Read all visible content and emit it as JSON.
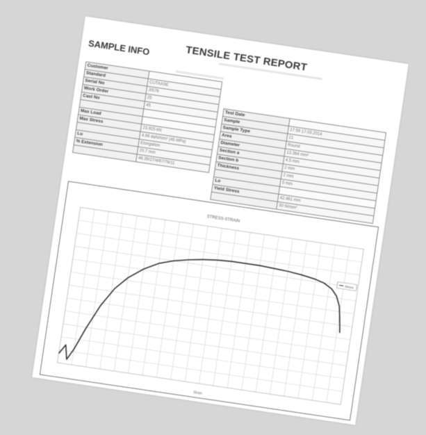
{
  "report": {
    "title": "TENSILE TEST REPORT",
    "section": "SAMPLE INFO"
  },
  "left_table": [
    {
      "label": "Customer",
      "value": ""
    },
    {
      "label": "Standard",
      "value": "CUTAASE"
    },
    {
      "label": "Serial No",
      "value": "JIS76"
    },
    {
      "label": "Work Order",
      "value": "25"
    },
    {
      "label": "Cast No",
      "value": "45"
    },
    {
      "label": "",
      "value": ""
    },
    {
      "label": "Max Load",
      "value": ""
    },
    {
      "label": "Max Stress",
      "value": "23.925 kN"
    },
    {
      "label": "",
      "value": "4.66 daN/mm² (45 MPa)"
    },
    {
      "label": "Lu",
      "value": "Elongation"
    },
    {
      "label": "% Extension",
      "value": "20.7 mm"
    },
    {
      "label": "",
      "value": "46.39/27/4/67/76/11"
    }
  ],
  "right_table": [
    {
      "label": "Test Date",
      "value": ""
    },
    {
      "label": "Sample",
      "value": "17:59 17.03.2014"
    },
    {
      "label": "Sample Type",
      "value": "21"
    },
    {
      "label": "Area",
      "value": "Round"
    },
    {
      "label": "Diameter",
      "value": "13.364 mm²"
    },
    {
      "label": "Section a",
      "value": "4.5 mm"
    },
    {
      "label": "Section b",
      "value": "2 mm"
    },
    {
      "label": "Thickness",
      "value": "2 mm"
    },
    {
      "label": "",
      "value": "5 mm"
    },
    {
      "label": "Lo",
      "value": ""
    },
    {
      "label": "Yield Stress",
      "value": "42.461 mm"
    },
    {
      "label": "",
      "value": "30 N/mm²"
    }
  ],
  "chart_data": {
    "type": "line",
    "title": "STRESS-STRAIN",
    "xlabel": "Strain",
    "ylabel": "",
    "legend": [
      "Stress"
    ],
    "legend_position": "top-right",
    "grid": true,
    "xlim": [
      0,
      100
    ],
    "ylim": [
      0,
      100
    ],
    "series": [
      {
        "name": "Stress",
        "x": [
          0,
          2,
          3,
          5,
          8,
          12,
          16,
          20,
          25,
          30,
          35,
          40,
          45,
          50,
          55,
          60,
          65,
          70,
          75,
          80,
          85,
          88,
          91,
          93,
          94.5,
          95.2,
          95.8,
          96
        ],
        "y": [
          6,
          12,
          3,
          10,
          24,
          40,
          52,
          60,
          67,
          72,
          75,
          77,
          78.5,
          79.5,
          80,
          80,
          80,
          79.5,
          79,
          78,
          76.5,
          75,
          72,
          68,
          62,
          55,
          48,
          45
        ]
      }
    ]
  }
}
